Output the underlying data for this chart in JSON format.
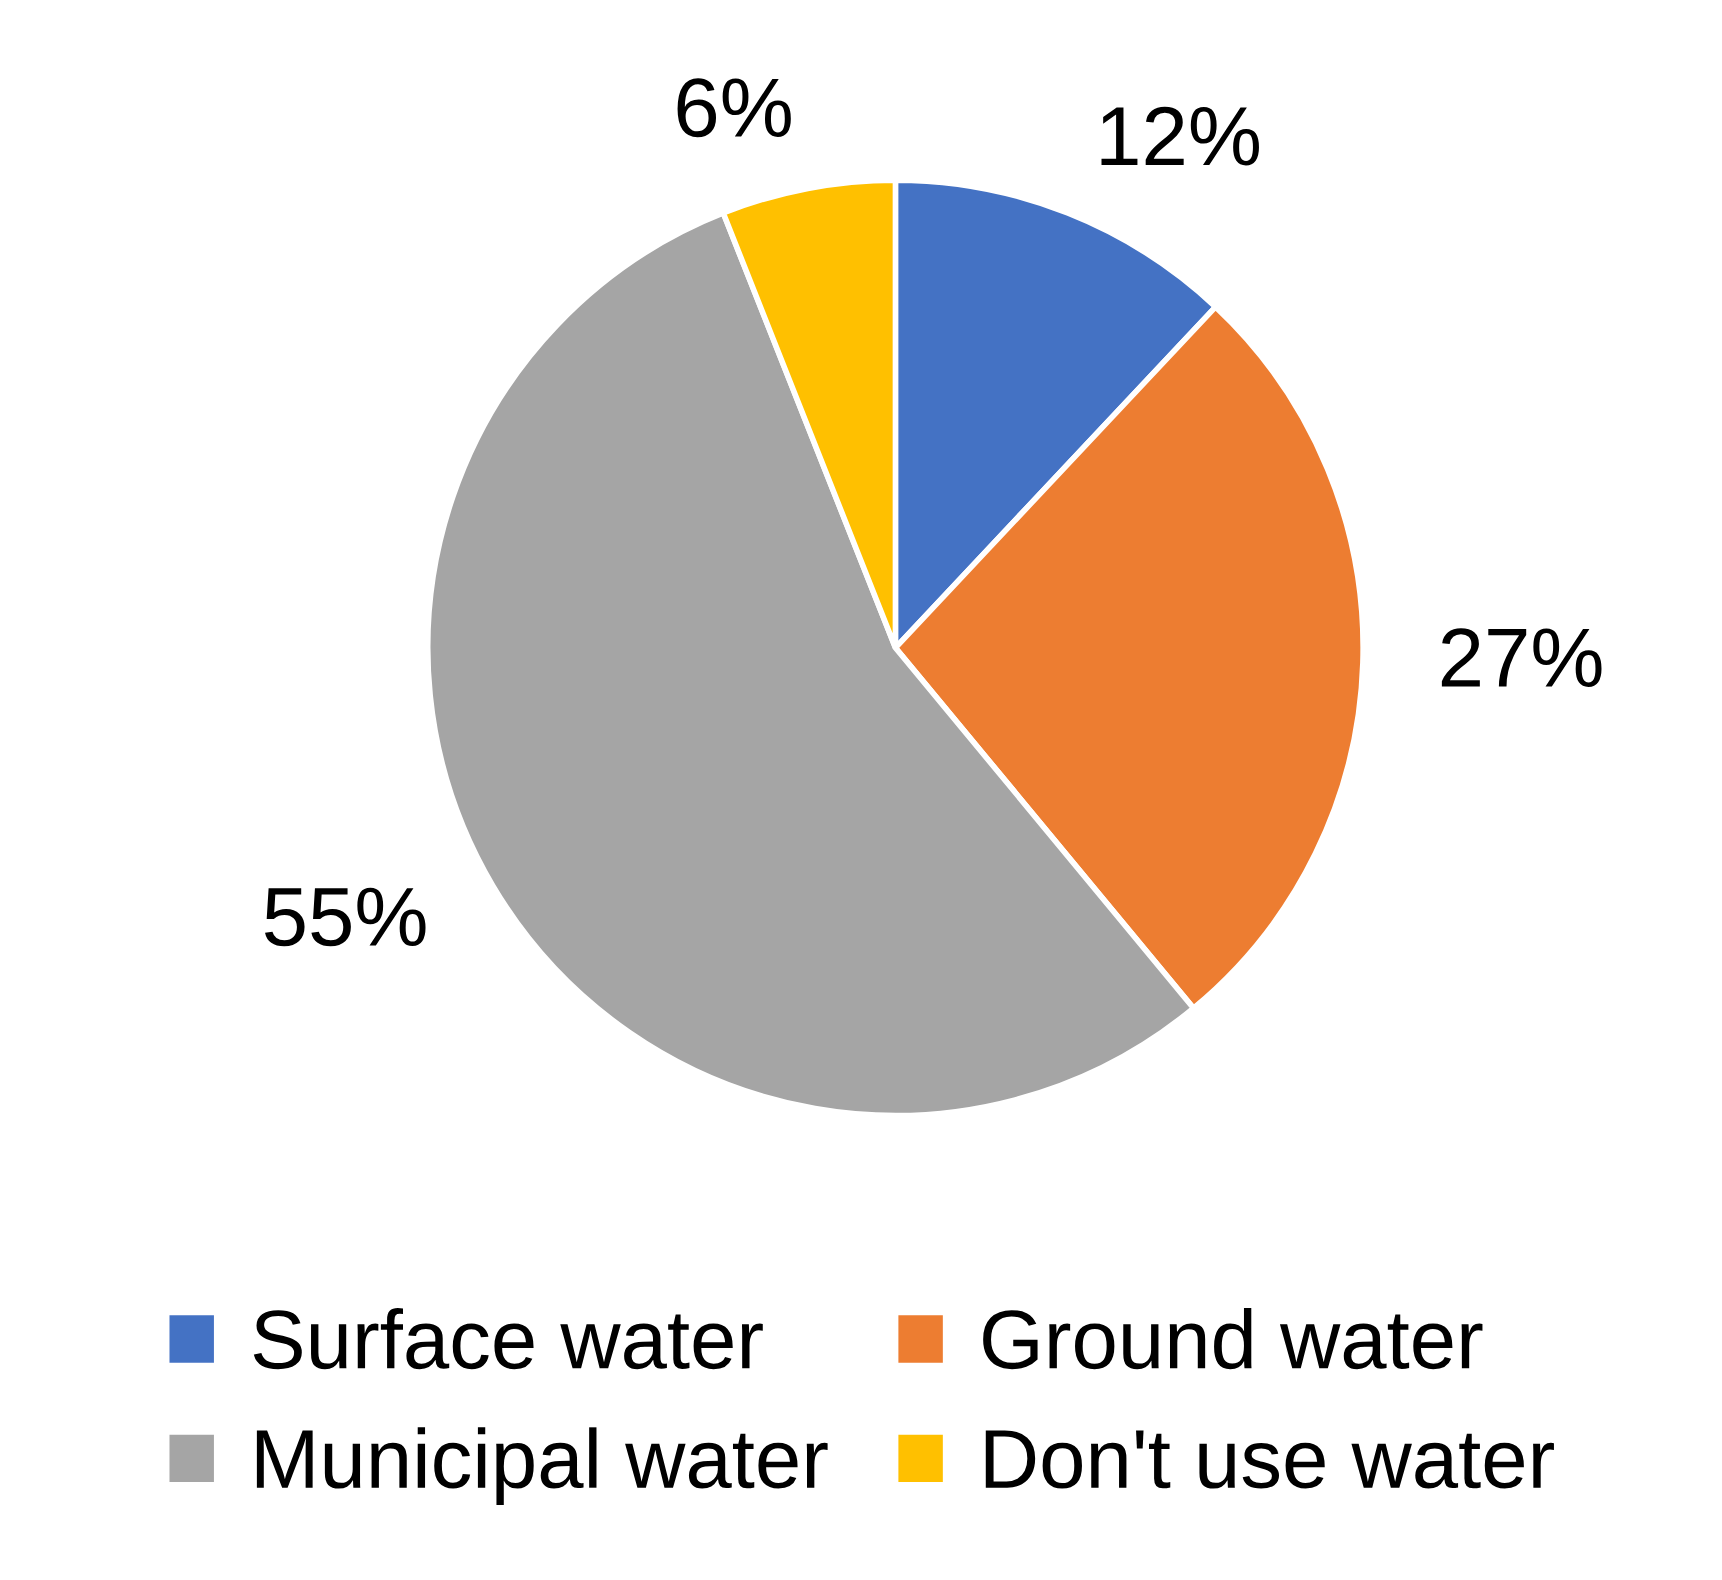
{
  "chart_data": {
    "type": "pie",
    "categories": [
      "Surface water",
      "Ground water",
      "Municipal water",
      "Don't use water"
    ],
    "values": [
      12,
      27,
      55,
      6
    ],
    "colors": [
      "#4472c4",
      "#ed7d31",
      "#a5a5a5",
      "#ffc000"
    ],
    "value_labels": [
      "12%",
      "27%",
      "55%",
      "6%"
    ],
    "legend": "bottom"
  }
}
